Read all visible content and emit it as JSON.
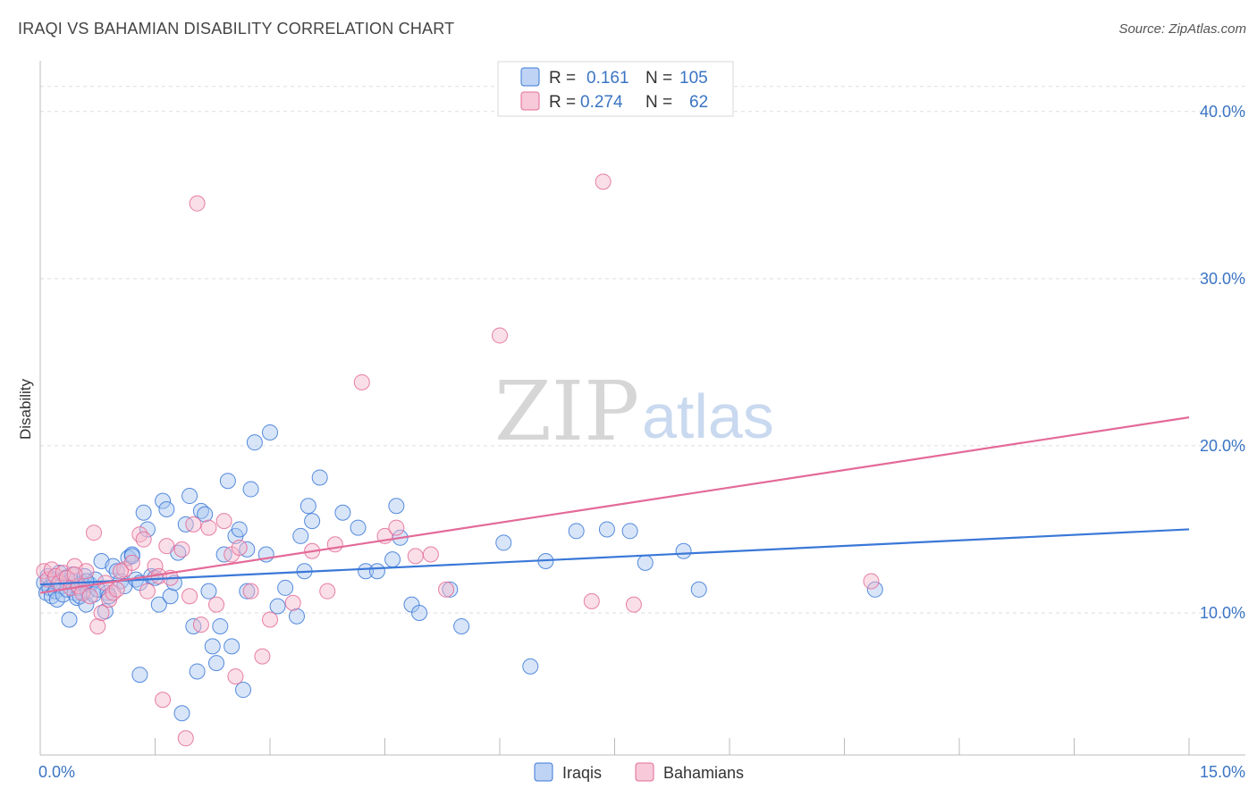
{
  "title": "IRAQI VS BAHAMIAN DISABILITY CORRELATION CHART",
  "source": "Source: ZipAtlas.com",
  "watermark": {
    "zip": "ZIP",
    "atlas": "atlas"
  },
  "colors": {
    "iraqis": "#3a78d8",
    "bahamians": "#e36a98",
    "iraqis_fill": "#a9c6f0",
    "bahamians_fill": "#f4b7cc"
  },
  "legend": {
    "rows": [
      {
        "r_label": "R =",
        "r_value": "0.161",
        "n_label": "N =",
        "n_value": "105"
      },
      {
        "r_label": "R =",
        "r_value": "0.274",
        "n_label": "N =",
        "n_value": "62"
      }
    ]
  },
  "chart_data": {
    "type": "scatter",
    "xlabel": "",
    "ylabel": "Disability",
    "xlim": [
      0,
      15
    ],
    "ylim": [
      1.5,
      42.5
    ],
    "x_ticks": [
      "0.0%",
      "15.0%"
    ],
    "y_ticks": [
      "10.0%",
      "20.0%",
      "30.0%",
      "40.0%"
    ],
    "y_tick_values": [
      10,
      20,
      30,
      40
    ],
    "legend_position": "top-center",
    "series": [
      {
        "name": "Iraqis",
        "trend": {
          "x": [
            0,
            15
          ],
          "y": [
            11.7,
            15.0
          ]
        },
        "points": [
          [
            0.05,
            11.8
          ],
          [
            0.08,
            11.2
          ],
          [
            0.1,
            12.2
          ],
          [
            0.12,
            11.5
          ],
          [
            0.15,
            11.0
          ],
          [
            0.18,
            12.0
          ],
          [
            0.2,
            11.3
          ],
          [
            0.22,
            10.8
          ],
          [
            0.25,
            12.4
          ],
          [
            0.28,
            11.6
          ],
          [
            0.3,
            11.1
          ],
          [
            0.33,
            12.1
          ],
          [
            0.35,
            11.4
          ],
          [
            0.38,
            9.6
          ],
          [
            0.4,
            11.9
          ],
          [
            0.42,
            12.3
          ],
          [
            0.45,
            11.2
          ],
          [
            0.48,
            10.9
          ],
          [
            0.5,
            11.5
          ],
          [
            0.52,
            11.0
          ],
          [
            0.55,
            11.8
          ],
          [
            0.58,
            12.2
          ],
          [
            0.6,
            10.5
          ],
          [
            0.62,
            11.3
          ],
          [
            0.65,
            11.7
          ],
          [
            0.7,
            11.1
          ],
          [
            0.72,
            12.0
          ],
          [
            0.75,
            11.4
          ],
          [
            0.8,
            13.1
          ],
          [
            0.85,
            10.1
          ],
          [
            0.88,
            11.2
          ],
          [
            0.9,
            11.0
          ],
          [
            0.95,
            12.8
          ],
          [
            1.0,
            12.5
          ],
          [
            1.05,
            11.9
          ],
          [
            1.1,
            11.6
          ],
          [
            1.15,
            13.3
          ],
          [
            1.2,
            13.5
          ],
          [
            1.25,
            12.0
          ],
          [
            1.3,
            11.8
          ],
          [
            1.35,
            16.0
          ],
          [
            1.4,
            15.0
          ],
          [
            1.45,
            12.2
          ],
          [
            1.5,
            12.1
          ],
          [
            1.55,
            10.5
          ],
          [
            1.6,
            16.7
          ],
          [
            1.65,
            16.2
          ],
          [
            1.7,
            11.0
          ],
          [
            1.75,
            11.8
          ],
          [
            1.8,
            13.6
          ],
          [
            1.9,
            15.3
          ],
          [
            1.95,
            17.0
          ],
          [
            2.0,
            9.2
          ],
          [
            2.05,
            6.5
          ],
          [
            2.1,
            16.1
          ],
          [
            2.15,
            15.9
          ],
          [
            2.2,
            11.3
          ],
          [
            2.25,
            8.0
          ],
          [
            2.3,
            7.0
          ],
          [
            2.35,
            9.2
          ],
          [
            2.4,
            13.5
          ],
          [
            2.45,
            17.9
          ],
          [
            2.5,
            8.0
          ],
          [
            2.55,
            14.6
          ],
          [
            2.6,
            15.0
          ],
          [
            2.65,
            5.4
          ],
          [
            2.7,
            13.8
          ],
          [
            2.75,
            17.4
          ],
          [
            2.8,
            20.2
          ],
          [
            2.95,
            13.5
          ],
          [
            3.0,
            20.8
          ],
          [
            3.1,
            10.4
          ],
          [
            3.2,
            11.5
          ],
          [
            3.35,
            9.8
          ],
          [
            3.4,
            14.6
          ],
          [
            3.45,
            12.5
          ],
          [
            3.5,
            16.4
          ],
          [
            3.55,
            15.5
          ],
          [
            3.65,
            18.1
          ],
          [
            3.95,
            16.0
          ],
          [
            4.15,
            15.1
          ],
          [
            4.25,
            12.5
          ],
          [
            4.4,
            12.5
          ],
          [
            4.6,
            13.2
          ],
          [
            4.65,
            16.4
          ],
          [
            4.7,
            14.5
          ],
          [
            4.85,
            10.5
          ],
          [
            4.95,
            10.0
          ],
          [
            5.35,
            11.4
          ],
          [
            5.5,
            9.2
          ],
          [
            6.05,
            14.2
          ],
          [
            6.4,
            6.8
          ],
          [
            6.6,
            13.1
          ],
          [
            7.0,
            14.9
          ],
          [
            7.4,
            15.0
          ],
          [
            7.7,
            14.9
          ],
          [
            7.9,
            13.0
          ],
          [
            8.4,
            13.7
          ],
          [
            8.6,
            11.4
          ],
          [
            10.9,
            11.4
          ],
          [
            1.3,
            6.3
          ],
          [
            1.85,
            4.0
          ],
          [
            1.2,
            13.4
          ],
          [
            0.6,
            11.9
          ],
          [
            2.7,
            11.3
          ]
        ]
      },
      {
        "name": "Bahamians",
        "trend": {
          "x": [
            0,
            15
          ],
          "y": [
            11.2,
            21.7
          ]
        },
        "points": [
          [
            0.05,
            12.5
          ],
          [
            0.1,
            12.0
          ],
          [
            0.15,
            12.6
          ],
          [
            0.2,
            12.2
          ],
          [
            0.25,
            11.8
          ],
          [
            0.3,
            12.4
          ],
          [
            0.35,
            12.1
          ],
          [
            0.4,
            11.5
          ],
          [
            0.45,
            12.8
          ],
          [
            0.5,
            11.6
          ],
          [
            0.55,
            11.2
          ],
          [
            0.6,
            12.5
          ],
          [
            0.65,
            11.0
          ],
          [
            0.7,
            14.8
          ],
          [
            0.75,
            9.2
          ],
          [
            0.8,
            10.0
          ],
          [
            0.85,
            11.8
          ],
          [
            0.9,
            10.8
          ],
          [
            0.95,
            11.2
          ],
          [
            1.0,
            11.4
          ],
          [
            1.1,
            12.6
          ],
          [
            1.2,
            13.0
          ],
          [
            1.3,
            14.7
          ],
          [
            1.35,
            14.4
          ],
          [
            1.4,
            11.3
          ],
          [
            1.5,
            12.8
          ],
          [
            1.55,
            12.2
          ],
          [
            1.6,
            4.8
          ],
          [
            1.65,
            14.0
          ],
          [
            1.7,
            12.1
          ],
          [
            1.85,
            13.8
          ],
          [
            1.9,
            2.5
          ],
          [
            1.95,
            11.0
          ],
          [
            2.0,
            15.3
          ],
          [
            2.05,
            34.5
          ],
          [
            2.1,
            9.3
          ],
          [
            2.2,
            15.1
          ],
          [
            2.3,
            10.5
          ],
          [
            2.4,
            15.5
          ],
          [
            2.5,
            13.5
          ],
          [
            2.55,
            6.2
          ],
          [
            2.6,
            13.9
          ],
          [
            2.75,
            11.3
          ],
          [
            2.9,
            7.4
          ],
          [
            3.0,
            9.6
          ],
          [
            3.3,
            10.6
          ],
          [
            3.55,
            13.7
          ],
          [
            3.75,
            11.3
          ],
          [
            3.85,
            14.1
          ],
          [
            4.2,
            23.8
          ],
          [
            4.5,
            14.6
          ],
          [
            4.65,
            15.1
          ],
          [
            4.9,
            13.4
          ],
          [
            5.1,
            13.5
          ],
          [
            5.3,
            11.4
          ],
          [
            6.0,
            26.6
          ],
          [
            7.2,
            10.7
          ],
          [
            7.35,
            35.8
          ],
          [
            7.75,
            10.5
          ],
          [
            10.85,
            11.9
          ],
          [
            0.45,
            12.3
          ],
          [
            1.05,
            12.5
          ]
        ]
      }
    ]
  },
  "bottom_legend": [
    "Iraqis",
    "Bahamians"
  ]
}
